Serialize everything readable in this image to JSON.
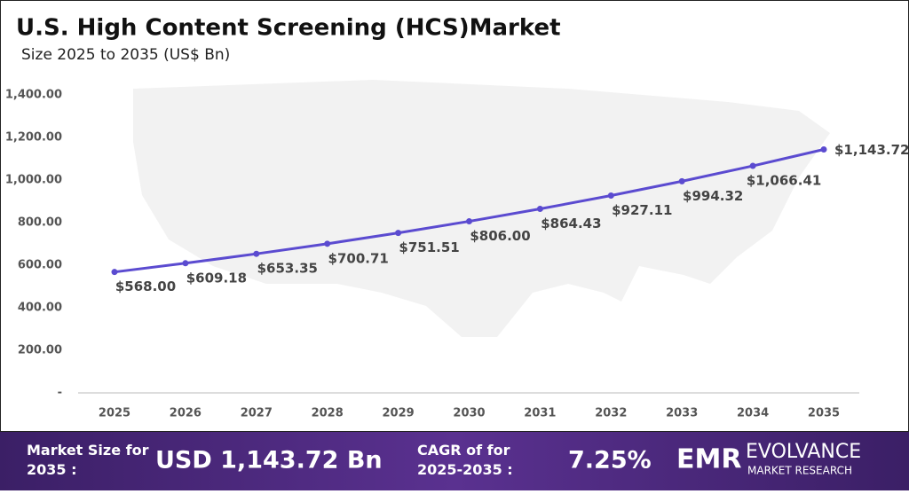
{
  "chart_data": {
    "type": "line",
    "title": "U.S. High Content Screening (HCS)Market",
    "subtitle": "Size 2025 to 2035 (US$ Bn)",
    "categories": [
      "2025",
      "2026",
      "2027",
      "2028",
      "2029",
      "2030",
      "2031",
      "2032",
      "2033",
      "2034",
      "2035"
    ],
    "values": [
      568.0,
      609.18,
      653.35,
      700.71,
      751.51,
      806.0,
      864.43,
      927.11,
      994.32,
      1066.41,
      1143.72
    ],
    "value_labels": [
      "$568.00",
      "$609.18",
      "$653.35",
      "$700.71",
      "$751.51",
      "$806.00",
      "$864.43",
      "$927.11",
      "$994.32",
      "$1,066.41",
      "$1,143.72"
    ],
    "color": "#5b4bd0",
    "ylim": [
      0,
      1400
    ],
    "yticks": [
      {
        "value": 0,
        "label": "-"
      },
      {
        "value": 200,
        "label": "200.00"
      },
      {
        "value": 400,
        "label": "400.00"
      },
      {
        "value": 600,
        "label": "600.00"
      },
      {
        "value": 800,
        "label": "800.00"
      },
      {
        "value": 1000,
        "label": "1,000.00"
      },
      {
        "value": 1200,
        "label": "1,200.00"
      },
      {
        "value": 1400,
        "label": "1,400.00"
      }
    ],
    "grid": false
  },
  "footer": {
    "market_size_label": "Market Size for 2035 :",
    "market_size_value": "USD 1,143.72 Bn",
    "cagr_label": "CAGR of for 2025-2035 :",
    "cagr_value": "7.25%",
    "logo": "EMR",
    "brand": "EVOLVANCE",
    "brand_sub": "MARKET RESEARCH"
  }
}
